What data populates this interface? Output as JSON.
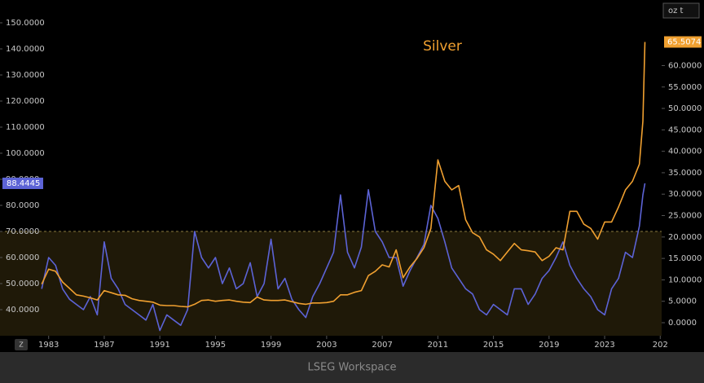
{
  "chart_data": {
    "type": "line",
    "title": "Silver",
    "right_axis_unit": "oz t",
    "footer": "LSEG Workspace",
    "corner_badge": "Z",
    "x": [
      1982.5,
      1983,
      1983.5,
      1984,
      1984.5,
      1985,
      1985.5,
      1986,
      1986.5,
      1987,
      1987.5,
      1988,
      1988.5,
      1989,
      1989.5,
      1990,
      1990.5,
      1991,
      1991.5,
      1992,
      1992.5,
      1993,
      1993.5,
      1994,
      1994.5,
      1995,
      1995.5,
      1996,
      1996.5,
      1997,
      1997.5,
      1998,
      1998.5,
      1999,
      1999.5,
      2000,
      2000.5,
      2001,
      2001.5,
      2002,
      2002.5,
      2003,
      2003.5,
      2004,
      2004.5,
      2005,
      2005.5,
      2006,
      2006.5,
      2007,
      2007.5,
      2008,
      2008.5,
      2009,
      2009.5,
      2010,
      2010.5,
      2011,
      2011.5,
      2012,
      2012.5,
      2013,
      2013.5,
      2014,
      2014.5,
      2015,
      2015.5,
      2016,
      2016.5,
      2017,
      2017.5,
      2018,
      2018.5,
      2019,
      2019.5,
      2020,
      2020.5,
      2021,
      2021.5,
      2022,
      2022.5,
      2023,
      2023.5,
      2024,
      2024.5,
      2025,
      2025.5,
      2025.75,
      2025.9
    ],
    "series": [
      {
        "color": "#5c63d6",
        "axis": "y",
        "values": [
          48,
          60,
          57,
          48,
          44,
          42,
          40,
          45,
          38,
          66,
          52,
          48,
          42,
          40,
          38,
          36,
          42,
          32,
          38,
          36,
          34,
          40,
          70,
          60,
          56,
          60,
          50,
          56,
          48,
          50,
          58,
          45,
          50,
          67,
          48,
          52,
          44,
          40,
          37,
          45,
          50,
          56,
          62,
          84,
          62,
          56,
          64,
          86,
          70,
          66,
          60,
          60,
          49,
          55,
          60,
          65,
          80,
          75,
          66,
          56,
          52,
          48,
          46,
          40,
          38,
          42,
          40,
          38,
          48,
          48,
          42,
          46,
          52,
          55,
          60,
          66,
          57,
          52,
          48,
          45,
          40,
          38,
          48,
          52,
          62,
          60,
          72,
          84,
          88.4445
        ]
      },
      {
        "name": "Silver",
        "color": "#f0a030",
        "axis": "y2",
        "values": [
          9,
          12.5,
          12,
          9.5,
          8,
          6.5,
          6.2,
          5.8,
          5.3,
          7.5,
          7,
          6.5,
          6.4,
          5.6,
          5.2,
          5,
          4.8,
          4.1,
          4,
          4,
          3.8,
          3.7,
          4.3,
          5.2,
          5.3,
          5,
          5.2,
          5.3,
          5,
          4.8,
          4.7,
          6,
          5.3,
          5.2,
          5.2,
          5.3,
          4.9,
          4.5,
          4.3,
          4.6,
          4.6,
          4.7,
          5,
          6.5,
          6.5,
          7.1,
          7.5,
          11,
          12,
          13.5,
          13,
          17,
          10.5,
          13,
          15,
          17.5,
          22,
          38,
          33,
          31,
          32,
          24,
          21,
          20,
          17,
          16,
          14.5,
          16.5,
          18.5,
          17,
          16.8,
          16.5,
          14.5,
          15.5,
          17.5,
          17,
          26,
          26,
          23,
          22,
          19.5,
          23.5,
          23.5,
          27,
          31,
          33,
          37,
          47,
          65.5074
        ]
      }
    ],
    "highlight_below": 70,
    "xlim": [
      1979.5,
      2027.1
    ],
    "xticks": [
      1983,
      1987,
      1991,
      1995,
      1999,
      2003,
      2007,
      2011,
      2015,
      2019,
      2023,
      {
        "value": 2027,
        "label": "202"
      }
    ],
    "ylim": [
      30,
      158.75
    ],
    "yticks": [
      {
        "value": 40,
        "label": "40.0000"
      },
      {
        "value": 50,
        "label": "50.0000"
      },
      {
        "value": 60,
        "label": "60.0000"
      },
      {
        "value": 70,
        "label": "70.0000"
      },
      {
        "value": 80,
        "label": "80.0000"
      },
      {
        "value": 90,
        "label": "90.0000"
      },
      {
        "value": 100,
        "label": "100.0000"
      },
      {
        "value": 110,
        "label": "110.0000"
      },
      {
        "value": 120,
        "label": "120.0000"
      },
      {
        "value": 130,
        "label": "130.0000"
      },
      {
        "value": 140,
        "label": "140.0000"
      },
      {
        "value": 150,
        "label": "150.0000"
      }
    ],
    "y2lim": [
      -3.04,
      75.3
    ],
    "y2ticks": [
      {
        "value": 0,
        "label": "0.0000"
      },
      {
        "value": 5,
        "label": "5.0000"
      },
      {
        "value": 10,
        "label": "10.0000"
      },
      {
        "value": 15,
        "label": "15.0000"
      },
      {
        "value": 20,
        "label": "20.0000"
      },
      {
        "value": 25,
        "label": "25.0000"
      },
      {
        "value": 30,
        "label": "30.0000"
      },
      {
        "value": 35,
        "label": "35.0000"
      },
      {
        "value": 40,
        "label": "40.0000"
      },
      {
        "value": 45,
        "label": "45.0000"
      },
      {
        "value": 50,
        "label": "50.0000"
      },
      {
        "value": 55,
        "label": "55.0000"
      },
      {
        "value": 60,
        "label": "60.0000"
      }
    ]
  }
}
